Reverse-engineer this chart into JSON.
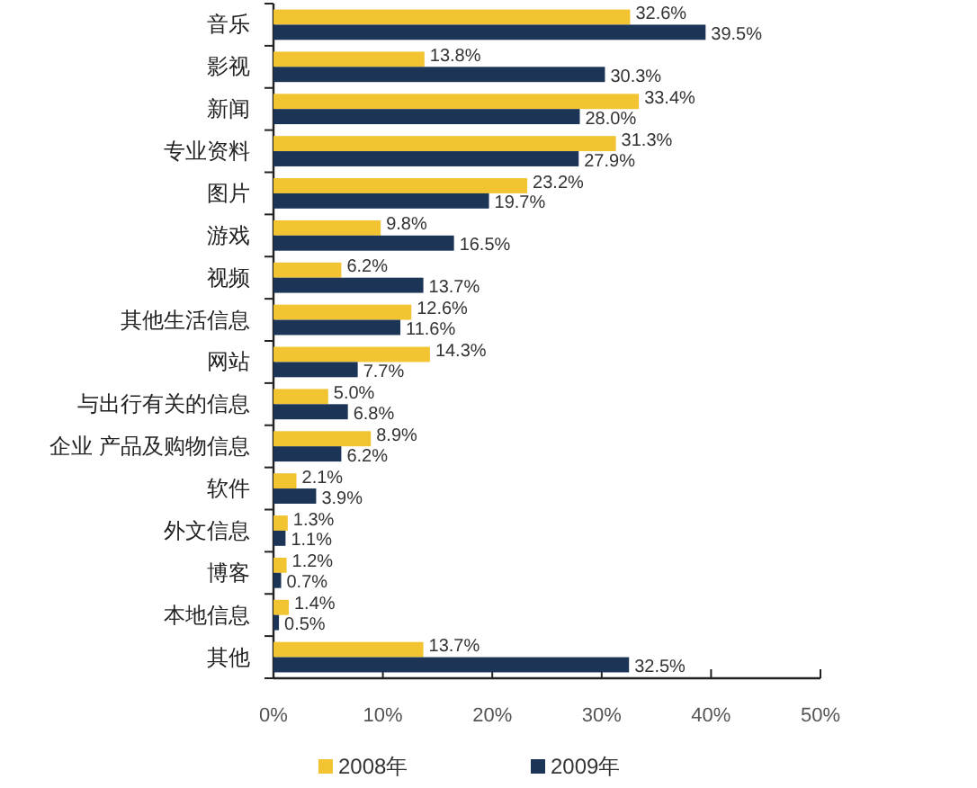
{
  "chart_data": {
    "type": "bar",
    "orientation": "horizontal",
    "categories": [
      "音乐",
      "影视",
      "新闻",
      "专业资料",
      "图片",
      "游戏",
      "视频",
      "其他生活信息",
      "网站",
      "与出行有关的信息",
      "企业 产品及购物信息",
      "软件",
      "外文信息",
      "博客",
      "本地信息",
      "其他"
    ],
    "series": [
      {
        "name": "2008年",
        "color": "#f2c431",
        "values": [
          32.6,
          13.8,
          33.4,
          31.3,
          23.2,
          9.8,
          6.2,
          12.6,
          14.3,
          5.0,
          8.9,
          2.1,
          1.3,
          1.2,
          1.4,
          13.7
        ],
        "value_labels": [
          "32.6%",
          "13.8%",
          "33.4%",
          "31.3%",
          "23.2%",
          "9.8%",
          "6.2%",
          "12.6%",
          "14.3%",
          "5.0%",
          "8.9%",
          "2.1%",
          "1.3%",
          "1.2%",
          "1.4%",
          "13.7%"
        ]
      },
      {
        "name": "2009年",
        "color": "#1c3557",
        "values": [
          39.5,
          30.3,
          28.0,
          27.9,
          19.7,
          16.5,
          13.7,
          11.6,
          7.7,
          6.8,
          6.2,
          3.9,
          1.1,
          0.7,
          0.5,
          32.5
        ],
        "value_labels": [
          "39.5%",
          "30.3%",
          "28.0%",
          "27.9%",
          "19.7%",
          "16.5%",
          "13.7%",
          "11.6%",
          "7.7%",
          "6.8%",
          "6.2%",
          "3.9%",
          "1.1%",
          "0.7%",
          "0.5%",
          "32.5%"
        ]
      }
    ],
    "xlim": [
      0,
      50
    ],
    "xticks": [
      {
        "value": 0,
        "label": "0%"
      },
      {
        "value": 10,
        "label": "10%"
      },
      {
        "value": 20,
        "label": "20%"
      },
      {
        "value": 30,
        "label": "30%"
      },
      {
        "value": 40,
        "label": "40%"
      },
      {
        "value": 50,
        "label": "50%"
      }
    ],
    "legend": "bottom"
  }
}
